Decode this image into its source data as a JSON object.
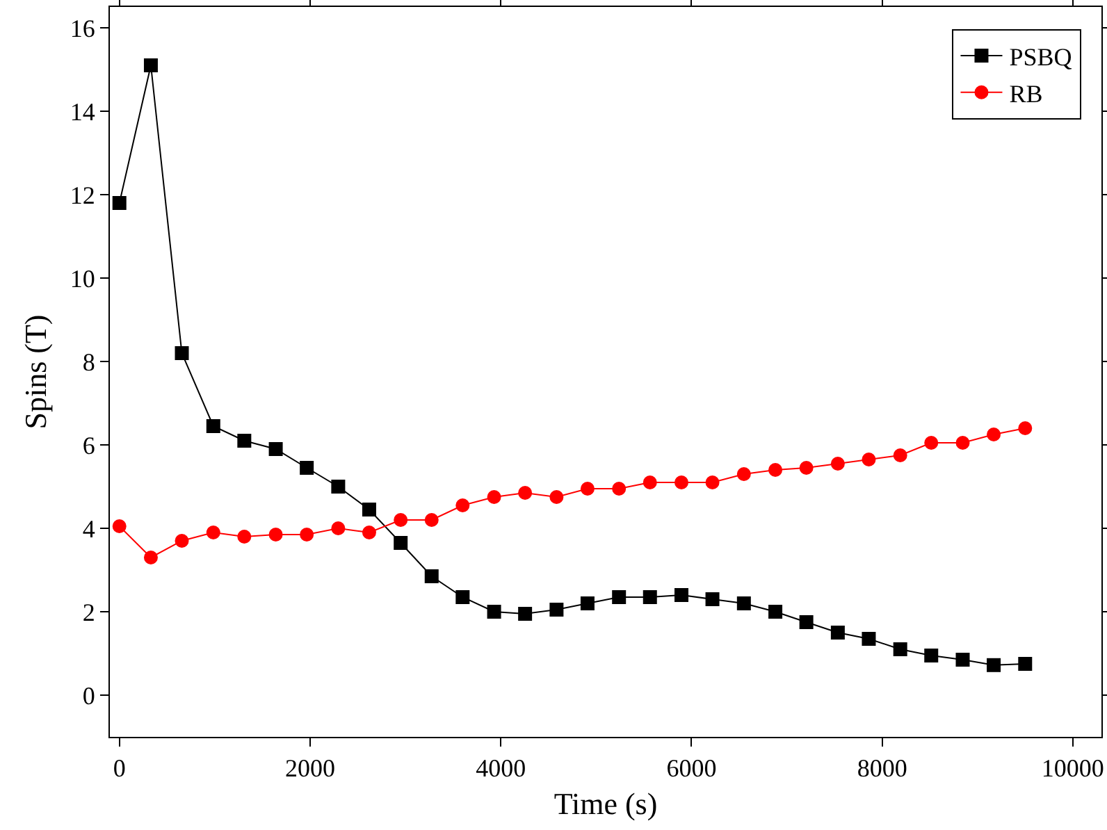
{
  "chart_data": {
    "type": "line",
    "xlabel": "Time (s)",
    "ylabel": "Spins (T)",
    "x": [
      0,
      330,
      655,
      985,
      1310,
      1640,
      1965,
      2295,
      2620,
      2950,
      3275,
      3600,
      3930,
      4255,
      4585,
      4910,
      5240,
      5565,
      5895,
      6220,
      6550,
      6880,
      7205,
      7535,
      7860,
      8190,
      8515,
      8845,
      9170,
      9500
    ],
    "series": [
      {
        "name": "PSBQ",
        "color": "#000000",
        "marker": "square",
        "values": [
          11.8,
          15.1,
          8.2,
          6.45,
          6.1,
          5.9,
          5.45,
          5.0,
          4.45,
          3.65,
          2.85,
          2.35,
          2.0,
          1.95,
          2.05,
          2.2,
          2.35,
          2.35,
          2.4,
          2.3,
          2.2,
          2.0,
          1.75,
          1.5,
          1.35,
          1.1,
          0.95,
          0.85,
          0.72,
          0.75
        ]
      },
      {
        "name": "RB",
        "color": "#ff0000",
        "marker": "circle",
        "values": [
          4.05,
          3.3,
          3.7,
          3.9,
          3.8,
          3.85,
          3.85,
          4.0,
          3.9,
          4.2,
          4.2,
          4.55,
          4.75,
          4.85,
          4.75,
          4.95,
          4.95,
          5.1,
          5.1,
          5.1,
          5.3,
          5.4,
          5.45,
          5.55,
          5.65,
          5.75,
          6.05,
          6.05,
          6.25,
          6.4
        ]
      }
    ],
    "xlim": [
      -100,
      10300
    ],
    "xticks": [
      0,
      2000,
      4000,
      6000,
      8000,
      10000
    ],
    "ylim": [
      -1,
      16.5
    ],
    "yticks": [
      0,
      2,
      4,
      6,
      8,
      10,
      12,
      14,
      16
    ],
    "grid": false,
    "legend": "top right",
    "line_style": "solid"
  }
}
